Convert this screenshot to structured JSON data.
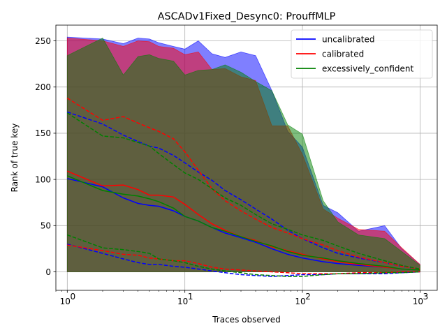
{
  "chart_data": {
    "type": "line",
    "title": "ASCADv1Fixed_Desync0: ProuffMLP",
    "xlabel": "Traces observed",
    "ylabel": "Rank of true key",
    "xscale": "log",
    "xlim": [
      0.8,
      1400
    ],
    "ylim": [
      -20,
      267
    ],
    "x_ticks": [
      1,
      10,
      100,
      1000
    ],
    "x_tick_labels": [
      "10",
      "10",
      "10",
      "10"
    ],
    "x_tick_exponents": [
      "0",
      "1",
      "2",
      "3"
    ],
    "y_ticks": [
      0,
      50,
      100,
      150,
      200,
      250
    ],
    "y_tick_labels": [
      "0",
      "50",
      "100",
      "150",
      "200",
      "250"
    ],
    "grid": true,
    "legend_position": "top-right",
    "series": [
      {
        "name": "uncalibrated",
        "color": "#0000ff",
        "x": [
          1,
          2,
          3,
          4,
          5,
          6,
          8,
          10,
          13,
          17,
          22,
          30,
          40,
          55,
          75,
          100,
          150,
          200,
          300,
          500,
          700,
          1000
        ],
        "median": [
          101,
          92,
          80,
          74,
          72,
          71,
          66,
          60,
          55,
          48,
          42,
          37,
          32,
          25,
          19,
          15,
          11,
          9,
          7,
          5,
          3,
          2
        ],
        "upper": [
          173,
          160,
          148,
          141,
          136,
          134,
          126,
          118,
          108,
          99,
          88,
          78,
          68,
          57,
          45,
          36,
          26,
          20,
          15,
          10,
          6,
          3
        ],
        "lower": [
          30,
          20,
          14,
          10,
          8,
          8,
          6,
          5,
          3,
          1,
          -1,
          -3,
          -4,
          -5,
          -4,
          -3,
          -3,
          -2,
          -2,
          -2,
          -1,
          0
        ],
        "band_upper": [
          254,
          252,
          247,
          253,
          252,
          248,
          244,
          241,
          250,
          236,
          232,
          238,
          234,
          196,
          152,
          135,
          72,
          64,
          44,
          50,
          25,
          8
        ],
        "band_lower": [
          0,
          0,
          0,
          0,
          0,
          0,
          0,
          0,
          0,
          0,
          0,
          0,
          0,
          0,
          0,
          0,
          0,
          0,
          0,
          0,
          0,
          0
        ]
      },
      {
        "name": "calibrated",
        "color": "#ff0000",
        "x": [
          1,
          2,
          3,
          4,
          5,
          6,
          8,
          10,
          13,
          17,
          22,
          30,
          40,
          55,
          75,
          100,
          150,
          200,
          300,
          500,
          700,
          1000
        ],
        "median": [
          109,
          93,
          94,
          89,
          83,
          83,
          81,
          73,
          62,
          52,
          45,
          38,
          34,
          27,
          23,
          19,
          14,
          11,
          8,
          5,
          3,
          2
        ],
        "upper": [
          188,
          164,
          168,
          161,
          156,
          152,
          144,
          130,
          110,
          90,
          77,
          66,
          57,
          48,
          42,
          36,
          29,
          23,
          16,
          10,
          6,
          3
        ],
        "lower": [
          29,
          23,
          19,
          18,
          15,
          14,
          12,
          12,
          9,
          5,
          3,
          2,
          1,
          0,
          -1,
          -2,
          -2,
          -2,
          -1,
          -1,
          0,
          0
        ],
        "band_upper": [
          253,
          250,
          244,
          250,
          249,
          244,
          242,
          235,
          238,
          219,
          220,
          211,
          207,
          158,
          158,
          127,
          68,
          58,
          46,
          44,
          26,
          8
        ],
        "band_lower": [
          0,
          0,
          0,
          0,
          0,
          0,
          0,
          0,
          0,
          0,
          0,
          0,
          0,
          0,
          0,
          0,
          0,
          0,
          0,
          0,
          0,
          0
        ]
      },
      {
        "name": "excessively_confident",
        "color": "#008000",
        "x": [
          1,
          2,
          3,
          4,
          5,
          6,
          8,
          10,
          13,
          17,
          22,
          30,
          40,
          55,
          75,
          100,
          150,
          200,
          300,
          500,
          700,
          1000
        ],
        "median": [
          104,
          88,
          84,
          82,
          79,
          76,
          69,
          60,
          55,
          48,
          44,
          38,
          33,
          28,
          22,
          18,
          15,
          12,
          9,
          6,
          3,
          2
        ],
        "upper": [
          172,
          147,
          145,
          140,
          136,
          128,
          116,
          107,
          100,
          90,
          80,
          72,
          62,
          52,
          46,
          40,
          34,
          28,
          20,
          12,
          7,
          3
        ],
        "lower": [
          40,
          26,
          24,
          22,
          20,
          14,
          12,
          10,
          6,
          3,
          1,
          -1,
          -3,
          -4,
          -5,
          -5,
          -3,
          -2,
          -2,
          -1,
          -1,
          0
        ],
        "band_upper": [
          234,
          253,
          213,
          233,
          235,
          231,
          228,
          213,
          218,
          219,
          224,
          216,
          206,
          196,
          159,
          149,
          77,
          54,
          40,
          36,
          22,
          7
        ],
        "band_lower": [
          0,
          0,
          0,
          0,
          0,
          0,
          0,
          0,
          0,
          0,
          0,
          0,
          0,
          0,
          0,
          0,
          0,
          0,
          0,
          0,
          0,
          0
        ]
      }
    ]
  }
}
